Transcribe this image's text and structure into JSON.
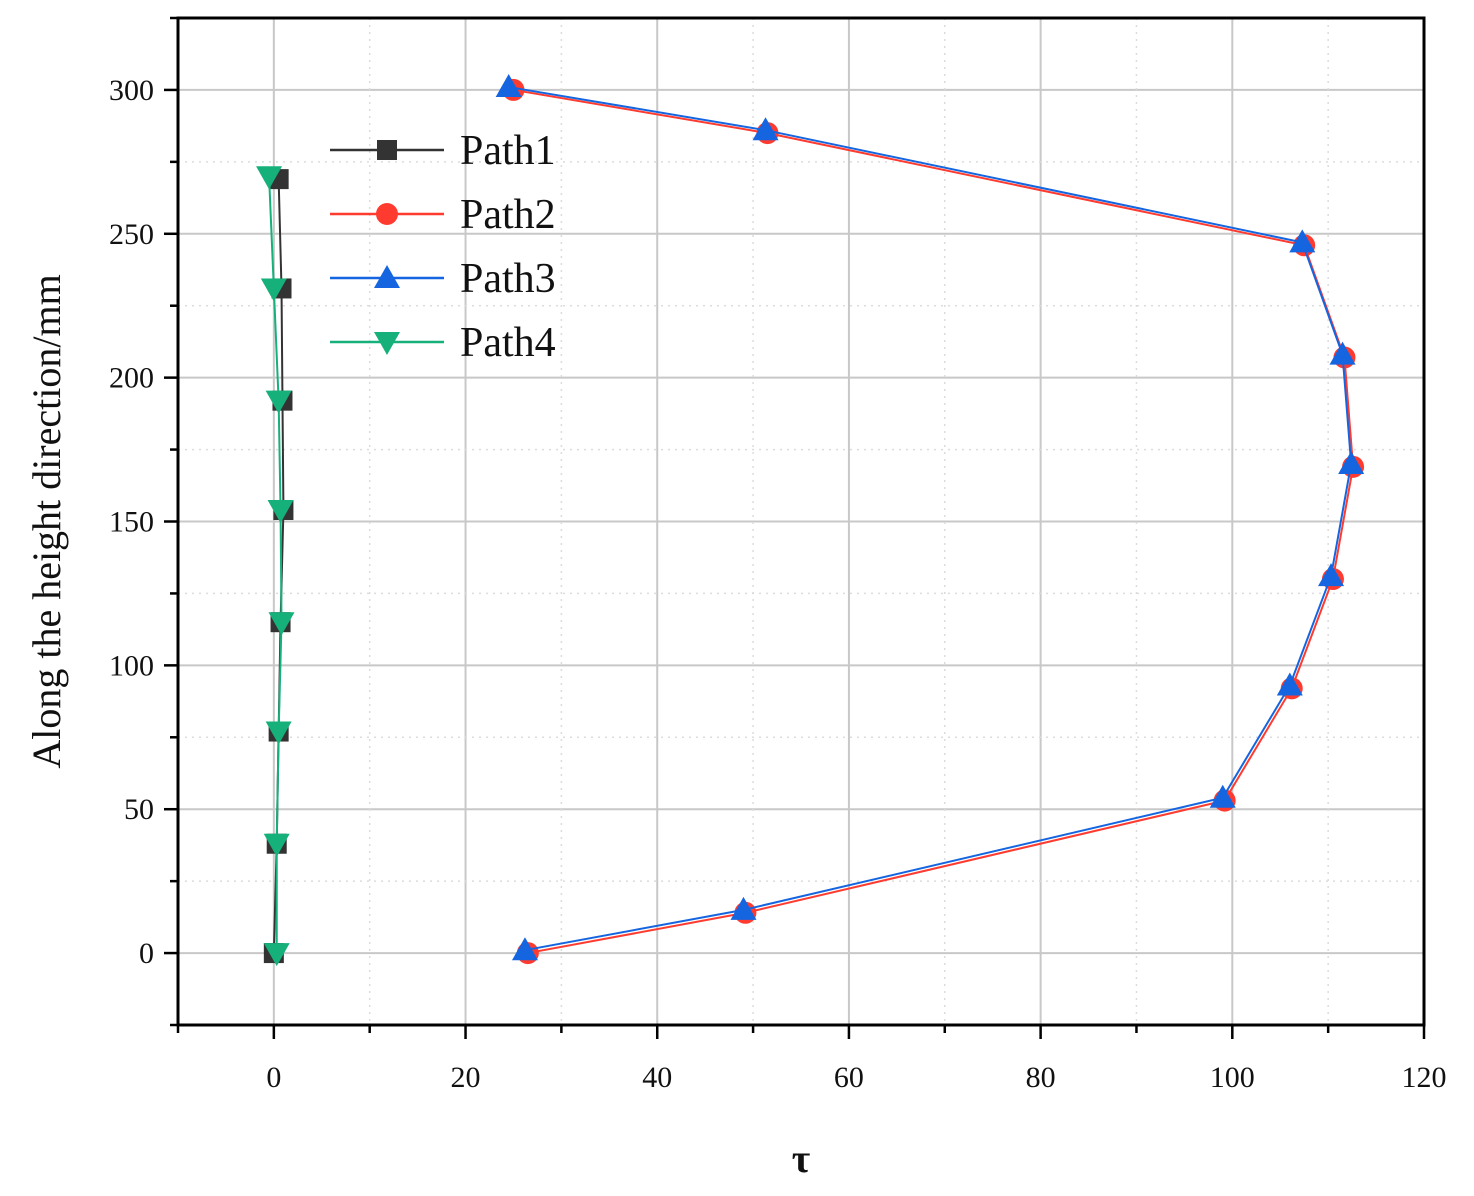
{
  "chart_data": {
    "type": "line",
    "title": "",
    "xlabel": "τ",
    "ylabel": "Along the height direction/mm",
    "xlim": [
      -10,
      120
    ],
    "ylim": [
      -25,
      325
    ],
    "x_ticks": [
      0,
      20,
      40,
      60,
      80,
      100,
      120
    ],
    "y_ticks": [
      0,
      50,
      100,
      150,
      200,
      250,
      300
    ],
    "grid": true,
    "legend_position": "top-left",
    "series": [
      {
        "name": "Path1",
        "color": "#333333",
        "marker": "square",
        "points": [
          {
            "x": 0.0,
            "y": 0
          },
          {
            "x": 0.3,
            "y": 38
          },
          {
            "x": 0.5,
            "y": 77
          },
          {
            "x": 0.7,
            "y": 115
          },
          {
            "x": 1.0,
            "y": 154
          },
          {
            "x": 0.9,
            "y": 192
          },
          {
            "x": 0.8,
            "y": 231
          },
          {
            "x": 0.5,
            "y": 269
          }
        ]
      },
      {
        "name": "Path2",
        "color": "#ff3b30",
        "marker": "circle",
        "points": [
          {
            "x": 26.5,
            "y": 0
          },
          {
            "x": 49.2,
            "y": 14
          },
          {
            "x": 99.2,
            "y": 53
          },
          {
            "x": 106.2,
            "y": 92
          },
          {
            "x": 110.5,
            "y": 130
          },
          {
            "x": 112.6,
            "y": 169
          },
          {
            "x": 111.7,
            "y": 207
          },
          {
            "x": 107.5,
            "y": 246
          },
          {
            "x": 51.5,
            "y": 285
          },
          {
            "x": 25.0,
            "y": 300
          }
        ]
      },
      {
        "name": "Path3",
        "color": "#1565e0",
        "marker": "triangle-up",
        "points": [
          {
            "x": 26.2,
            "y": 1
          },
          {
            "x": 49.0,
            "y": 15
          },
          {
            "x": 99.0,
            "y": 54
          },
          {
            "x": 106.0,
            "y": 93
          },
          {
            "x": 110.3,
            "y": 131
          },
          {
            "x": 112.4,
            "y": 170
          },
          {
            "x": 111.5,
            "y": 208
          },
          {
            "x": 107.3,
            "y": 247
          },
          {
            "x": 51.3,
            "y": 286
          },
          {
            "x": 24.5,
            "y": 301
          }
        ]
      },
      {
        "name": "Path4",
        "color": "#16b07a",
        "marker": "triangle-down",
        "points": [
          {
            "x": 0.3,
            "y": 0
          },
          {
            "x": 0.3,
            "y": 38
          },
          {
            "x": 0.5,
            "y": 77
          },
          {
            "x": 0.8,
            "y": 115
          },
          {
            "x": 0.7,
            "y": 154
          },
          {
            "x": 0.5,
            "y": 192
          },
          {
            "x": 0.0,
            "y": 231
          },
          {
            "x": -0.5,
            "y": 270
          }
        ]
      }
    ]
  }
}
